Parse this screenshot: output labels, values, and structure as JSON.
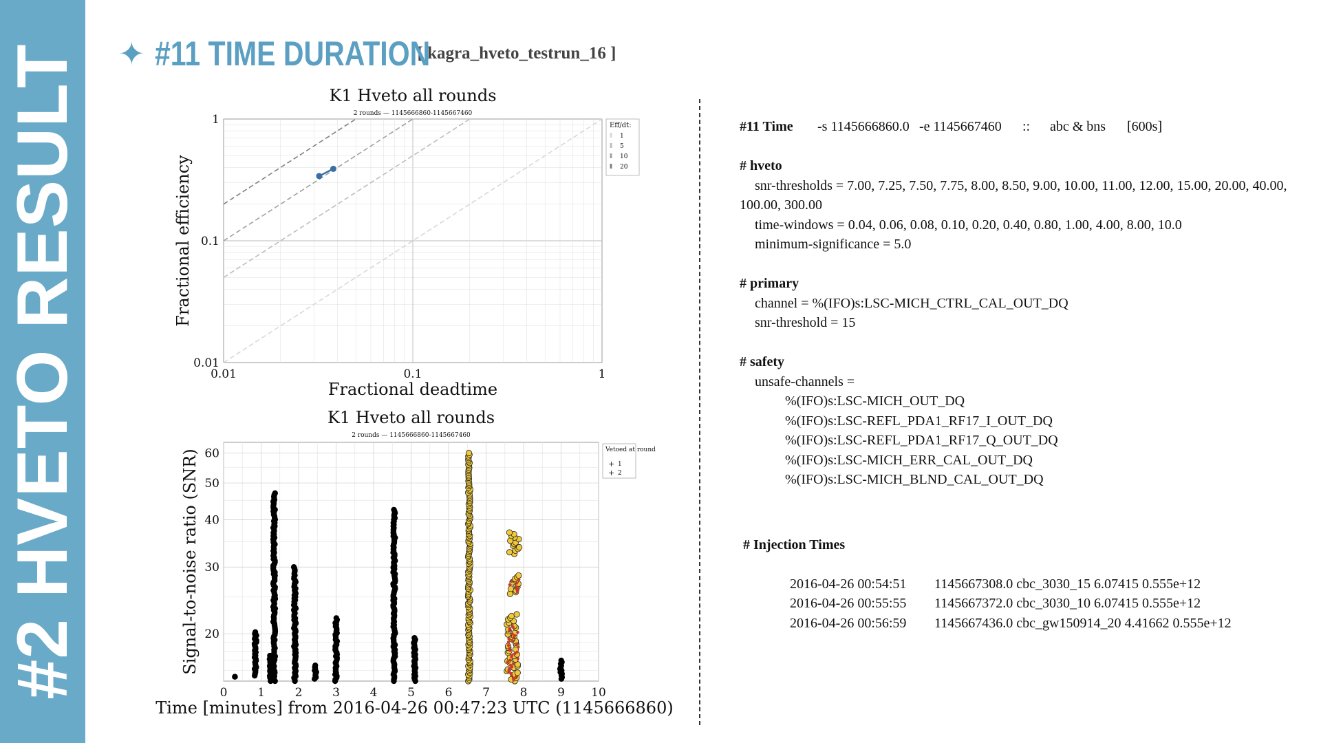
{
  "sidebar": {
    "title": "#2 HVETO RESULT"
  },
  "header": {
    "star": "✦",
    "title": "#11 TIME DURATION",
    "run": "[ kagra_hveto_testrun_16 ]"
  },
  "colors": {
    "accent": "#6aaac9",
    "title": "#5b9fc3",
    "round1": "#f0c93a",
    "round2": "#c83a2a",
    "line": "#3a6ea5"
  },
  "chart_data": [
    {
      "type": "line",
      "title": "K1 Hveto all rounds",
      "subtitle": "2 rounds — 1145666860-1145667460",
      "xlabel": "Fractional deadtime",
      "ylabel": "Fractional efficiency",
      "xscale": "log",
      "yscale": "log",
      "xlim": [
        0.01,
        1
      ],
      "ylim": [
        0.01,
        1
      ],
      "xticks": [
        "0.01",
        "0.1",
        "1"
      ],
      "yticks": [
        "0.01",
        "0.1",
        "1"
      ],
      "grid": true,
      "legend": {
        "title": "Eff/dt:",
        "placement": "top-right",
        "entries": [
          "1",
          "5",
          "10",
          "20"
        ]
      },
      "ratio_lines": [
        1,
        5,
        10,
        20
      ],
      "series": [
        {
          "x": [
            0.032,
            0.038
          ],
          "y": [
            0.34,
            0.39
          ]
        }
      ]
    },
    {
      "type": "scatter",
      "title": "K1 Hveto all rounds",
      "subtitle": "2 rounds — 1145666860-1145667460",
      "xlabel": "Time [minutes] from 2016-04-26 00:47:23 UTC (1145666860)",
      "ylabel": "Signal-to-noise ratio (SNR)",
      "yscale": "log",
      "xlim": [
        0,
        10
      ],
      "ylim": [
        15,
        64
      ],
      "xticks": [
        "0",
        "1",
        "2",
        "3",
        "4",
        "5",
        "6",
        "7",
        "8",
        "9",
        "10"
      ],
      "yticks": [
        "20",
        "30",
        "40",
        "50",
        "60"
      ],
      "grid": true,
      "legend": {
        "title": "Vetoed at round",
        "placement": "top-right",
        "entries": [
          "1",
          "2"
        ]
      },
      "clusters": [
        {
          "round": 0,
          "x": 0.3,
          "ymin": 15.4,
          "ymax": 15.4
        },
        {
          "round": 0,
          "x": 0.85,
          "ymin": 15.5,
          "ymax": 20.2
        },
        {
          "round": 0,
          "x": 1.25,
          "ymin": 15.0,
          "ymax": 17.5
        },
        {
          "round": 0,
          "x": 1.35,
          "ymin": 15.0,
          "ymax": 47.0
        },
        {
          "round": 0,
          "x": 1.9,
          "ymin": 15.0,
          "ymax": 30.0
        },
        {
          "round": 0,
          "x": 2.45,
          "ymin": 15.2,
          "ymax": 16.5
        },
        {
          "round": 0,
          "x": 3.0,
          "ymin": 15.0,
          "ymax": 22.0
        },
        {
          "round": 0,
          "x": 4.55,
          "ymin": 15.0,
          "ymax": 42.5
        },
        {
          "round": 0,
          "x": 5.1,
          "ymin": 15.0,
          "ymax": 19.5
        },
        {
          "round": 1,
          "x": 6.55,
          "ymin": 15.0,
          "ymax": 60.0
        },
        {
          "round": 1,
          "x": 7.75,
          "ymin": 32.5,
          "ymax": 37.0
        },
        {
          "round": 1,
          "x": 7.75,
          "ymin": 25.5,
          "ymax": 28.5
        },
        {
          "round": 1,
          "x": 7.7,
          "ymin": 15.0,
          "ymax": 22.5
        },
        {
          "round": 2,
          "x": 7.72,
          "ymin": 15.1,
          "ymax": 21.0
        },
        {
          "round": 2,
          "x": 7.75,
          "ymin": 25.8,
          "ymax": 27.8
        },
        {
          "round": 0,
          "x": 9.0,
          "ymin": 15.2,
          "ymax": 17.0
        }
      ]
    }
  ],
  "config": {
    "time_line": {
      "label": "#11 Time",
      "start": "-s 1145666860.0",
      "end": "-e 1145667460",
      "sep": "::",
      "kind": "abc & bns",
      "dur": "[600s]"
    },
    "hveto": {
      "head": "# hveto",
      "snr": "snr-thresholds = 7.00, 7.25, 7.50, 7.75, 8.00, 8.50, 9.00, 10.00, 11.00, 12.00, 15.00, 20.00, 40.00, 100.00, 300.00",
      "windows": "time-windows = 0.04, 0.06, 0.08, 0.10, 0.20, 0.40, 0.80, 1.00, 4.00, 8.00, 10.0",
      "minsig": "minimum-significance = 5.0"
    },
    "primary": {
      "head": "# primary",
      "channel": "channel = %(IFO)s:LSC-MICH_CTRL_CAL_OUT_DQ",
      "snr": "snr-threshold = 15"
    },
    "safety": {
      "head": "# safety",
      "label": "unsafe-channels =",
      "channels": [
        "%(IFO)s:LSC-MICH_OUT_DQ",
        "%(IFO)s:LSC-REFL_PDA1_RF17_I_OUT_DQ",
        "%(IFO)s:LSC-REFL_PDA1_RF17_Q_OUT_DQ",
        "%(IFO)s:LSC-MICH_ERR_CAL_OUT_DQ",
        "%(IFO)s:LSC-MICH_BLND_CAL_OUT_DQ"
      ]
    }
  },
  "injections": {
    "head": "# Injection Times",
    "rows": [
      {
        "date": "2016-04-26 00:54:51",
        "info": "1145667308.0 cbc_3030_15 6.07415 0.555e+12"
      },
      {
        "date": "2016-04-26 00:55:55",
        "info": "1145667372.0 cbc_3030_10 6.07415 0.555e+12"
      },
      {
        "date": "2016-04-26 00:56:59",
        "info": "1145667436.0 cbc_gw150914_20 4.41662 0.555e+12"
      }
    ]
  }
}
